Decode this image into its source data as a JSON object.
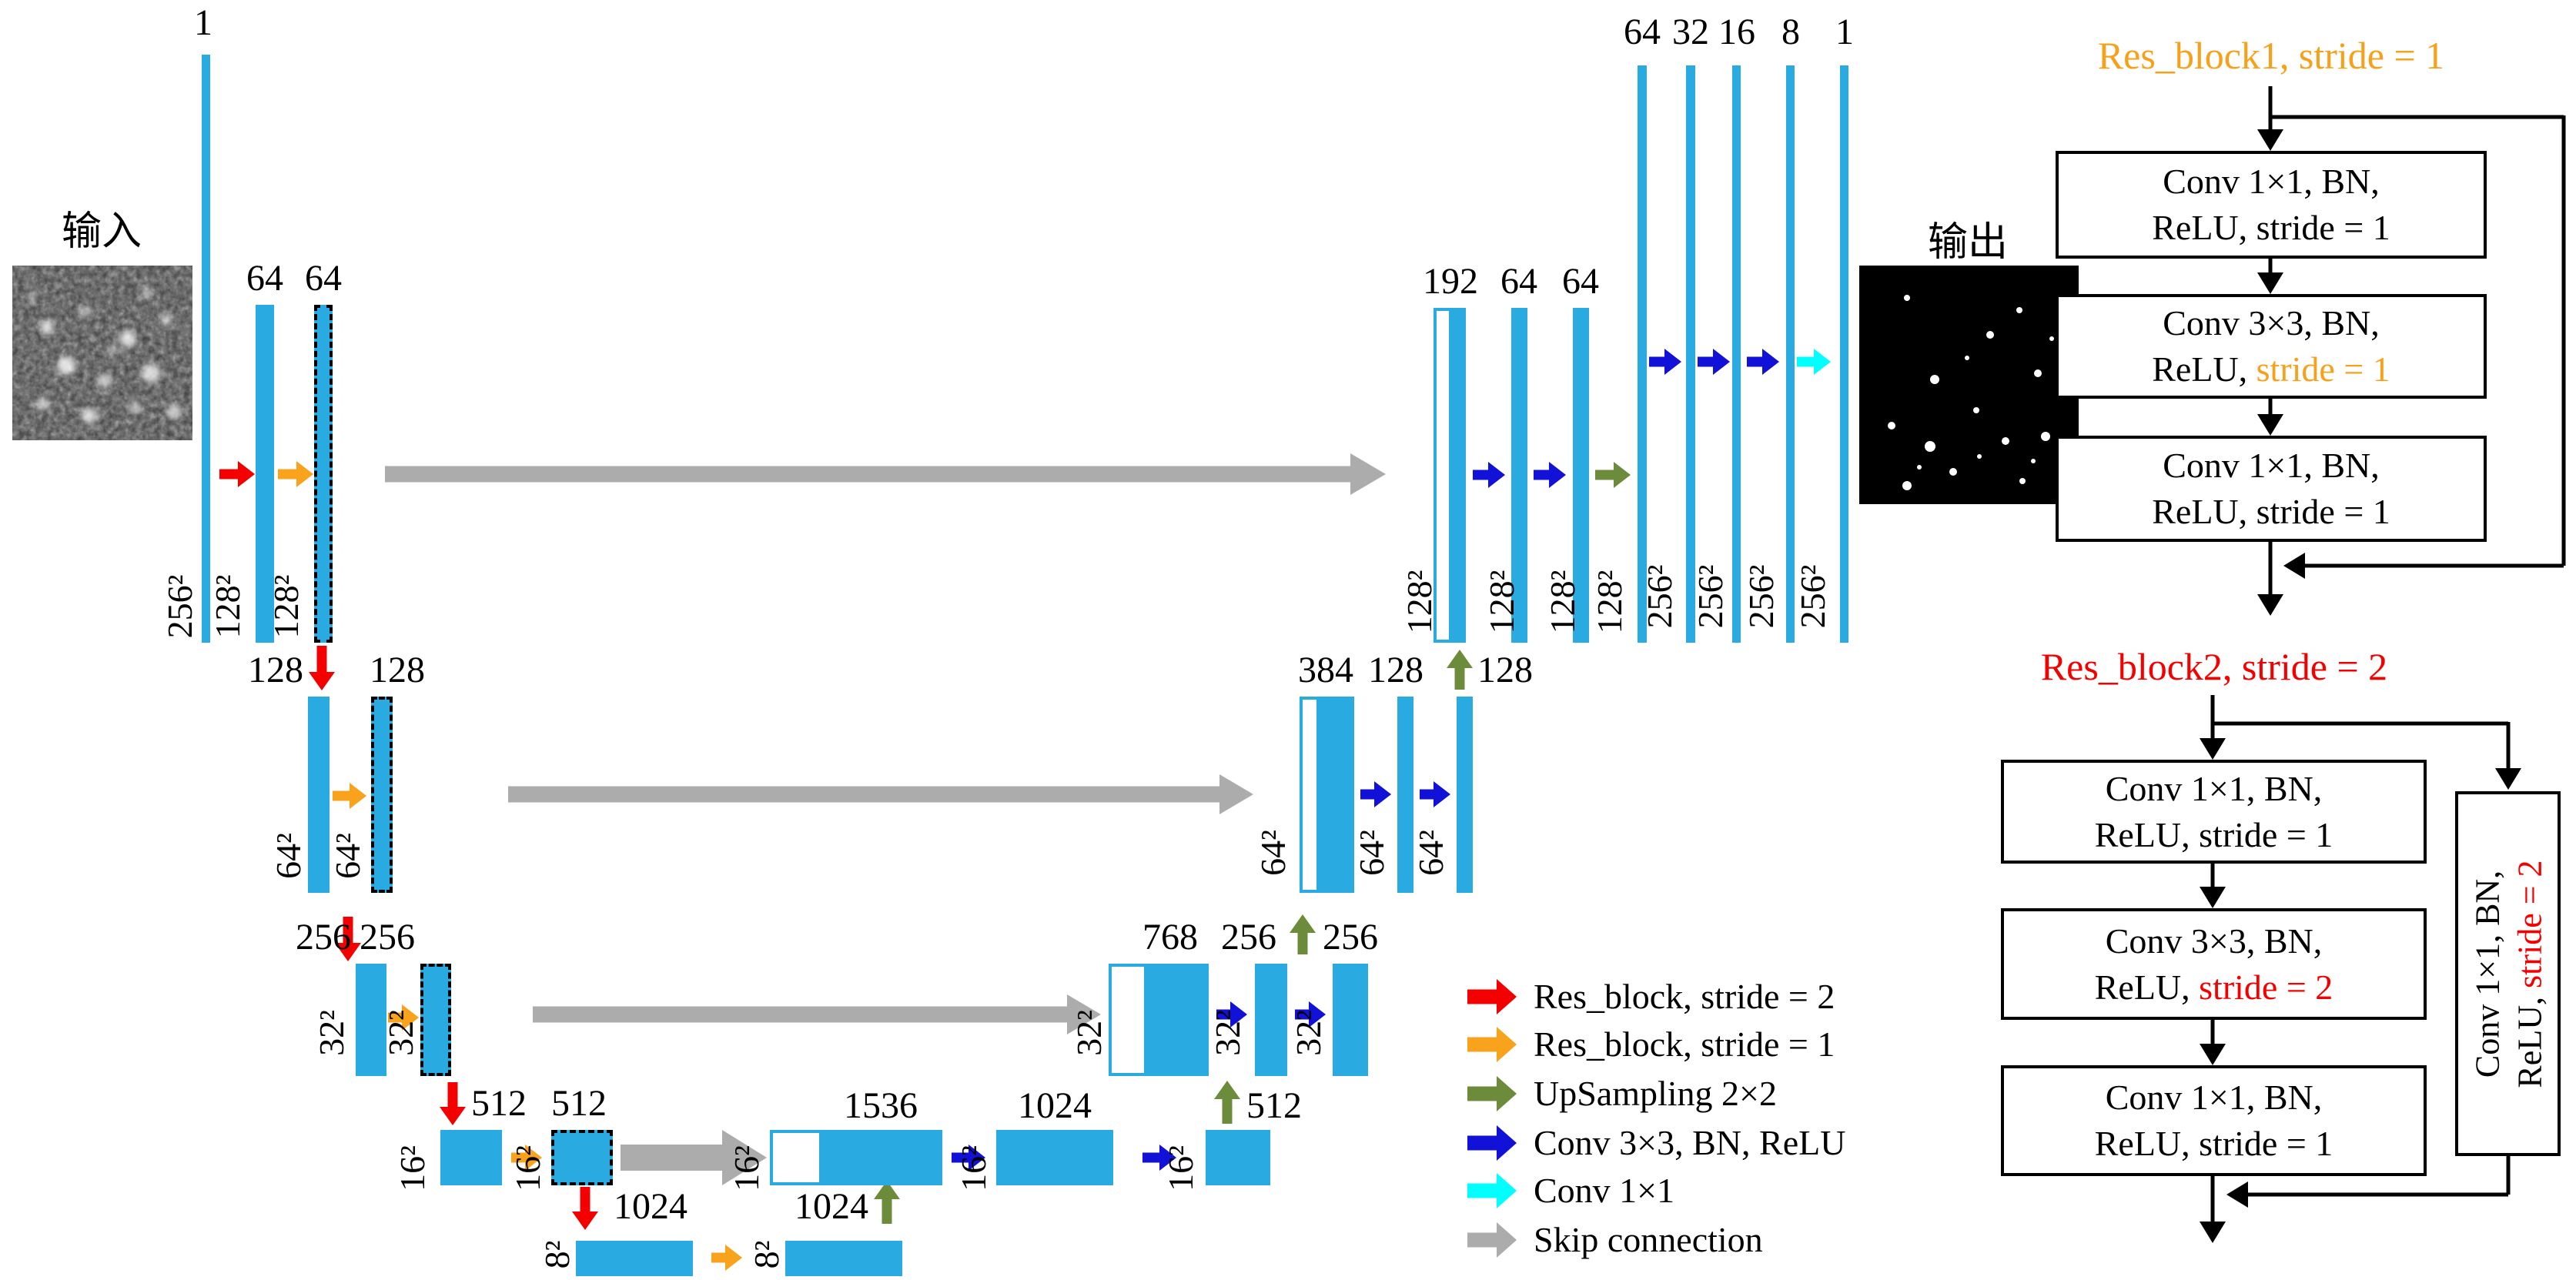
{
  "colors": {
    "bar_blue": "#29ABE2",
    "arrow_red": "#F40000",
    "arrow_orange": "#F9A21B",
    "arrow_green": "#6C8C3C",
    "arrow_blue": "#1111D8",
    "arrow_cyan": "#00FFFF",
    "arrow_gray": "#ACACAC",
    "title_orange": "#F7A11A",
    "title_red": "#F40000"
  },
  "unet": {
    "input_label": "输入",
    "output_label": "输出",
    "channels": {
      "input": "1",
      "enc1": [
        "64",
        "64"
      ],
      "enc2": [
        "128",
        "128"
      ],
      "enc3": [
        "256",
        "256"
      ],
      "enc4": [
        "512",
        "512"
      ],
      "enc5": "1024",
      "dec5": "1024",
      "dec4": [
        "1536",
        "1024",
        "512"
      ],
      "dec3": [
        "768",
        "256",
        "256"
      ],
      "dec2": [
        "384",
        "128",
        "128"
      ],
      "dec1": [
        "192",
        "64",
        "64"
      ],
      "head": [
        "64",
        "32",
        "16",
        "8",
        "1"
      ]
    },
    "sizes": {
      "input": "256²",
      "enc1": [
        "128²",
        "128²"
      ],
      "enc2": [
        "64²",
        "64²"
      ],
      "enc3": [
        "32²",
        "32²"
      ],
      "enc4": [
        "16²",
        "16²"
      ],
      "enc5": "8²",
      "dec5": "8²",
      "dec4": [
        "16²",
        "16²",
        "16²"
      ],
      "dec3": [
        "32²",
        "32²",
        "32²"
      ],
      "dec2": [
        "64²",
        "64²",
        "64²"
      ],
      "dec1": [
        "128²",
        "128²",
        "128²",
        "128²"
      ],
      "head": [
        "256²",
        "256²",
        "256²",
        "256²"
      ]
    }
  },
  "legend": {
    "items": [
      {
        "color": "#F40000",
        "label": "Res_block, stride = 2"
      },
      {
        "color": "#F9A21B",
        "label": "Res_block, stride = 1"
      },
      {
        "color": "#6C8C3C",
        "label": "UpSampling 2×2"
      },
      {
        "color": "#1111D8",
        "label": "Conv 3×3, BN, ReLU"
      },
      {
        "color": "#00FFFF",
        "label": "Conv 1×1"
      },
      {
        "color": "#ACACAC",
        "label": "Skip connection"
      }
    ]
  },
  "res_block1": {
    "title": "Res_block1, stride = 1",
    "boxes": [
      {
        "line1": "Conv 1×1, BN,",
        "line2_pre": "ReLU, ",
        "line2_stride": "stride = 1"
      },
      {
        "line1": "Conv 3×3, BN,",
        "line2_pre": "ReLU, ",
        "line2_stride": "stride = 1"
      },
      {
        "line1": "Conv 1×1, BN,",
        "line2_pre": "ReLU, ",
        "line2_stride": "stride = 1"
      }
    ]
  },
  "res_block2": {
    "title": "Res_block2, stride = 2",
    "boxes": [
      {
        "line1": "Conv 1×1, BN,",
        "line2_pre": "ReLU, ",
        "line2_stride": "stride = 1"
      },
      {
        "line1": "Conv 3×3, BN,",
        "line2_pre": "ReLU, ",
        "line2_stride": "stride = 2"
      },
      {
        "line1": "Conv 1×1, BN,",
        "line2_pre": "ReLU, ",
        "line2_stride": "stride = 1"
      }
    ],
    "side_box": {
      "line1": "Conv 1×1, BN,",
      "line2_pre": "ReLU, ",
      "line2_stride": "stride = 2"
    }
  }
}
